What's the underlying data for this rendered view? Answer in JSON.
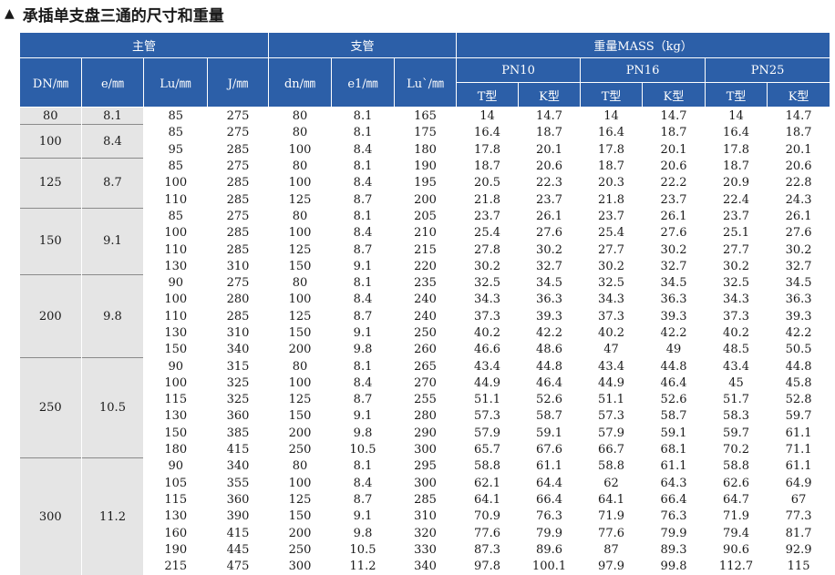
{
  "title": "承插单支盘三通的尺寸和重量",
  "title_marker": "▲",
  "header": {
    "main_pipe": "主管",
    "branch_pipe": "支管",
    "mass": "重量MASS（kg）",
    "dn": "DN/㎜",
    "e": "e/㎜",
    "lu": "Lu/㎜",
    "j": "J/㎜",
    "dn_branch": "dn/㎜",
    "e1": "e1/㎜",
    "lu2": "Lu`/㎜",
    "pn10": "PN10",
    "pn16": "PN16",
    "pn25": "PN25",
    "t_type": "T型",
    "k_type": "K型"
  },
  "groups": [
    {
      "dn": "80",
      "e": "8.1",
      "rows": [
        [
          "85",
          "275",
          "80",
          "8.1",
          "165",
          "14",
          "14.7",
          "14",
          "14.7",
          "14",
          "14.7"
        ]
      ]
    },
    {
      "dn": "100",
      "e": "8.4",
      "rows": [
        [
          "85",
          "275",
          "80",
          "8.1",
          "175",
          "16.4",
          "18.7",
          "16.4",
          "18.7",
          "16.4",
          "18.7"
        ],
        [
          "95",
          "285",
          "100",
          "8.4",
          "180",
          "17.8",
          "20.1",
          "17.8",
          "20.1",
          "17.8",
          "20.1"
        ]
      ]
    },
    {
      "dn": "125",
      "e": "8.7",
      "rows": [
        [
          "85",
          "275",
          "80",
          "8.1",
          "190",
          "18.7",
          "20.6",
          "18.7",
          "20.6",
          "18.7",
          "20.6"
        ],
        [
          "100",
          "285",
          "100",
          "8.4",
          "195",
          "20.5",
          "22.3",
          "20.3",
          "22.2",
          "20.9",
          "22.8"
        ],
        [
          "110",
          "285",
          "125",
          "8.7",
          "200",
          "21.8",
          "23.7",
          "21.8",
          "23.7",
          "22.4",
          "24.3"
        ]
      ]
    },
    {
      "dn": "150",
      "e": "9.1",
      "rows": [
        [
          "85",
          "275",
          "80",
          "8.1",
          "205",
          "23.7",
          "26.1",
          "23.7",
          "26.1",
          "23.7",
          "26.1"
        ],
        [
          "100",
          "285",
          "100",
          "8.4",
          "210",
          "25.4",
          "27.6",
          "25.4",
          "27.6",
          "25.1",
          "27.6"
        ],
        [
          "110",
          "285",
          "125",
          "8.7",
          "215",
          "27.8",
          "30.2",
          "27.7",
          "30.2",
          "27.7",
          "30.2"
        ],
        [
          "130",
          "310",
          "150",
          "9.1",
          "220",
          "30.2",
          "32.7",
          "30.2",
          "32.7",
          "30.2",
          "32.7"
        ]
      ]
    },
    {
      "dn": "200",
      "e": "9.8",
      "rows": [
        [
          "90",
          "275",
          "80",
          "8.1",
          "235",
          "32.5",
          "34.5",
          "32.5",
          "34.5",
          "32.5",
          "34.5"
        ],
        [
          "100",
          "280",
          "100",
          "8.4",
          "240",
          "34.3",
          "36.3",
          "34.3",
          "36.3",
          "34.3",
          "36.3"
        ],
        [
          "110",
          "285",
          "125",
          "8.7",
          "240",
          "37.3",
          "39.3",
          "37.3",
          "39.3",
          "37.3",
          "39.3"
        ],
        [
          "130",
          "310",
          "150",
          "9.1",
          "250",
          "40.2",
          "42.2",
          "40.2",
          "42.2",
          "40.2",
          "42.2"
        ],
        [
          "150",
          "340",
          "200",
          "9.8",
          "260",
          "46.6",
          "48.6",
          "47",
          "49",
          "48.5",
          "50.5"
        ]
      ]
    },
    {
      "dn": "250",
      "e": "10.5",
      "rows": [
        [
          "90",
          "315",
          "80",
          "8.1",
          "265",
          "43.4",
          "44.8",
          "43.4",
          "44.8",
          "43.4",
          "44.8"
        ],
        [
          "100",
          "325",
          "100",
          "8.4",
          "270",
          "44.9",
          "46.4",
          "44.9",
          "46.4",
          "45",
          "45.8"
        ],
        [
          "115",
          "325",
          "125",
          "8.7",
          "255",
          "51.1",
          "52.6",
          "51.1",
          "52.6",
          "51.7",
          "52.8"
        ],
        [
          "130",
          "360",
          "150",
          "9.1",
          "280",
          "57.3",
          "58.7",
          "57.3",
          "58.7",
          "58.3",
          "59.7"
        ],
        [
          "150",
          "385",
          "200",
          "9.8",
          "290",
          "57.9",
          "59.1",
          "57.9",
          "59.1",
          "59.7",
          "61.1"
        ],
        [
          "180",
          "415",
          "250",
          "10.5",
          "300",
          "65.7",
          "67.6",
          "66.7",
          "68.1",
          "70.2",
          "71.1"
        ]
      ]
    },
    {
      "dn": "300",
      "e": "11.2",
      "rows": [
        [
          "90",
          "340",
          "80",
          "8.1",
          "295",
          "58.8",
          "61.1",
          "58.8",
          "61.1",
          "58.8",
          "61.1"
        ],
        [
          "105",
          "355",
          "100",
          "8.4",
          "300",
          "62.1",
          "64.4",
          "62",
          "64.3",
          "62.6",
          "64.9"
        ],
        [
          "115",
          "360",
          "125",
          "8.7",
          "285",
          "64.1",
          "66.4",
          "64.1",
          "66.4",
          "64.7",
          "67"
        ],
        [
          "130",
          "390",
          "150",
          "9.1",
          "310",
          "70.9",
          "76.3",
          "71.9",
          "76.3",
          "71.9",
          "77.3"
        ],
        [
          "160",
          "415",
          "200",
          "9.8",
          "320",
          "77.6",
          "79.9",
          "77.6",
          "79.9",
          "79.4",
          "81.7"
        ],
        [
          "190",
          "445",
          "250",
          "10.5",
          "330",
          "87.3",
          "89.6",
          "87",
          "89.3",
          "90.6",
          "92.9"
        ],
        [
          "215",
          "475",
          "300",
          "11.2",
          "340",
          "97.8",
          "100.1",
          "97.9",
          "99.8",
          "112.7",
          "115"
        ]
      ]
    }
  ]
}
